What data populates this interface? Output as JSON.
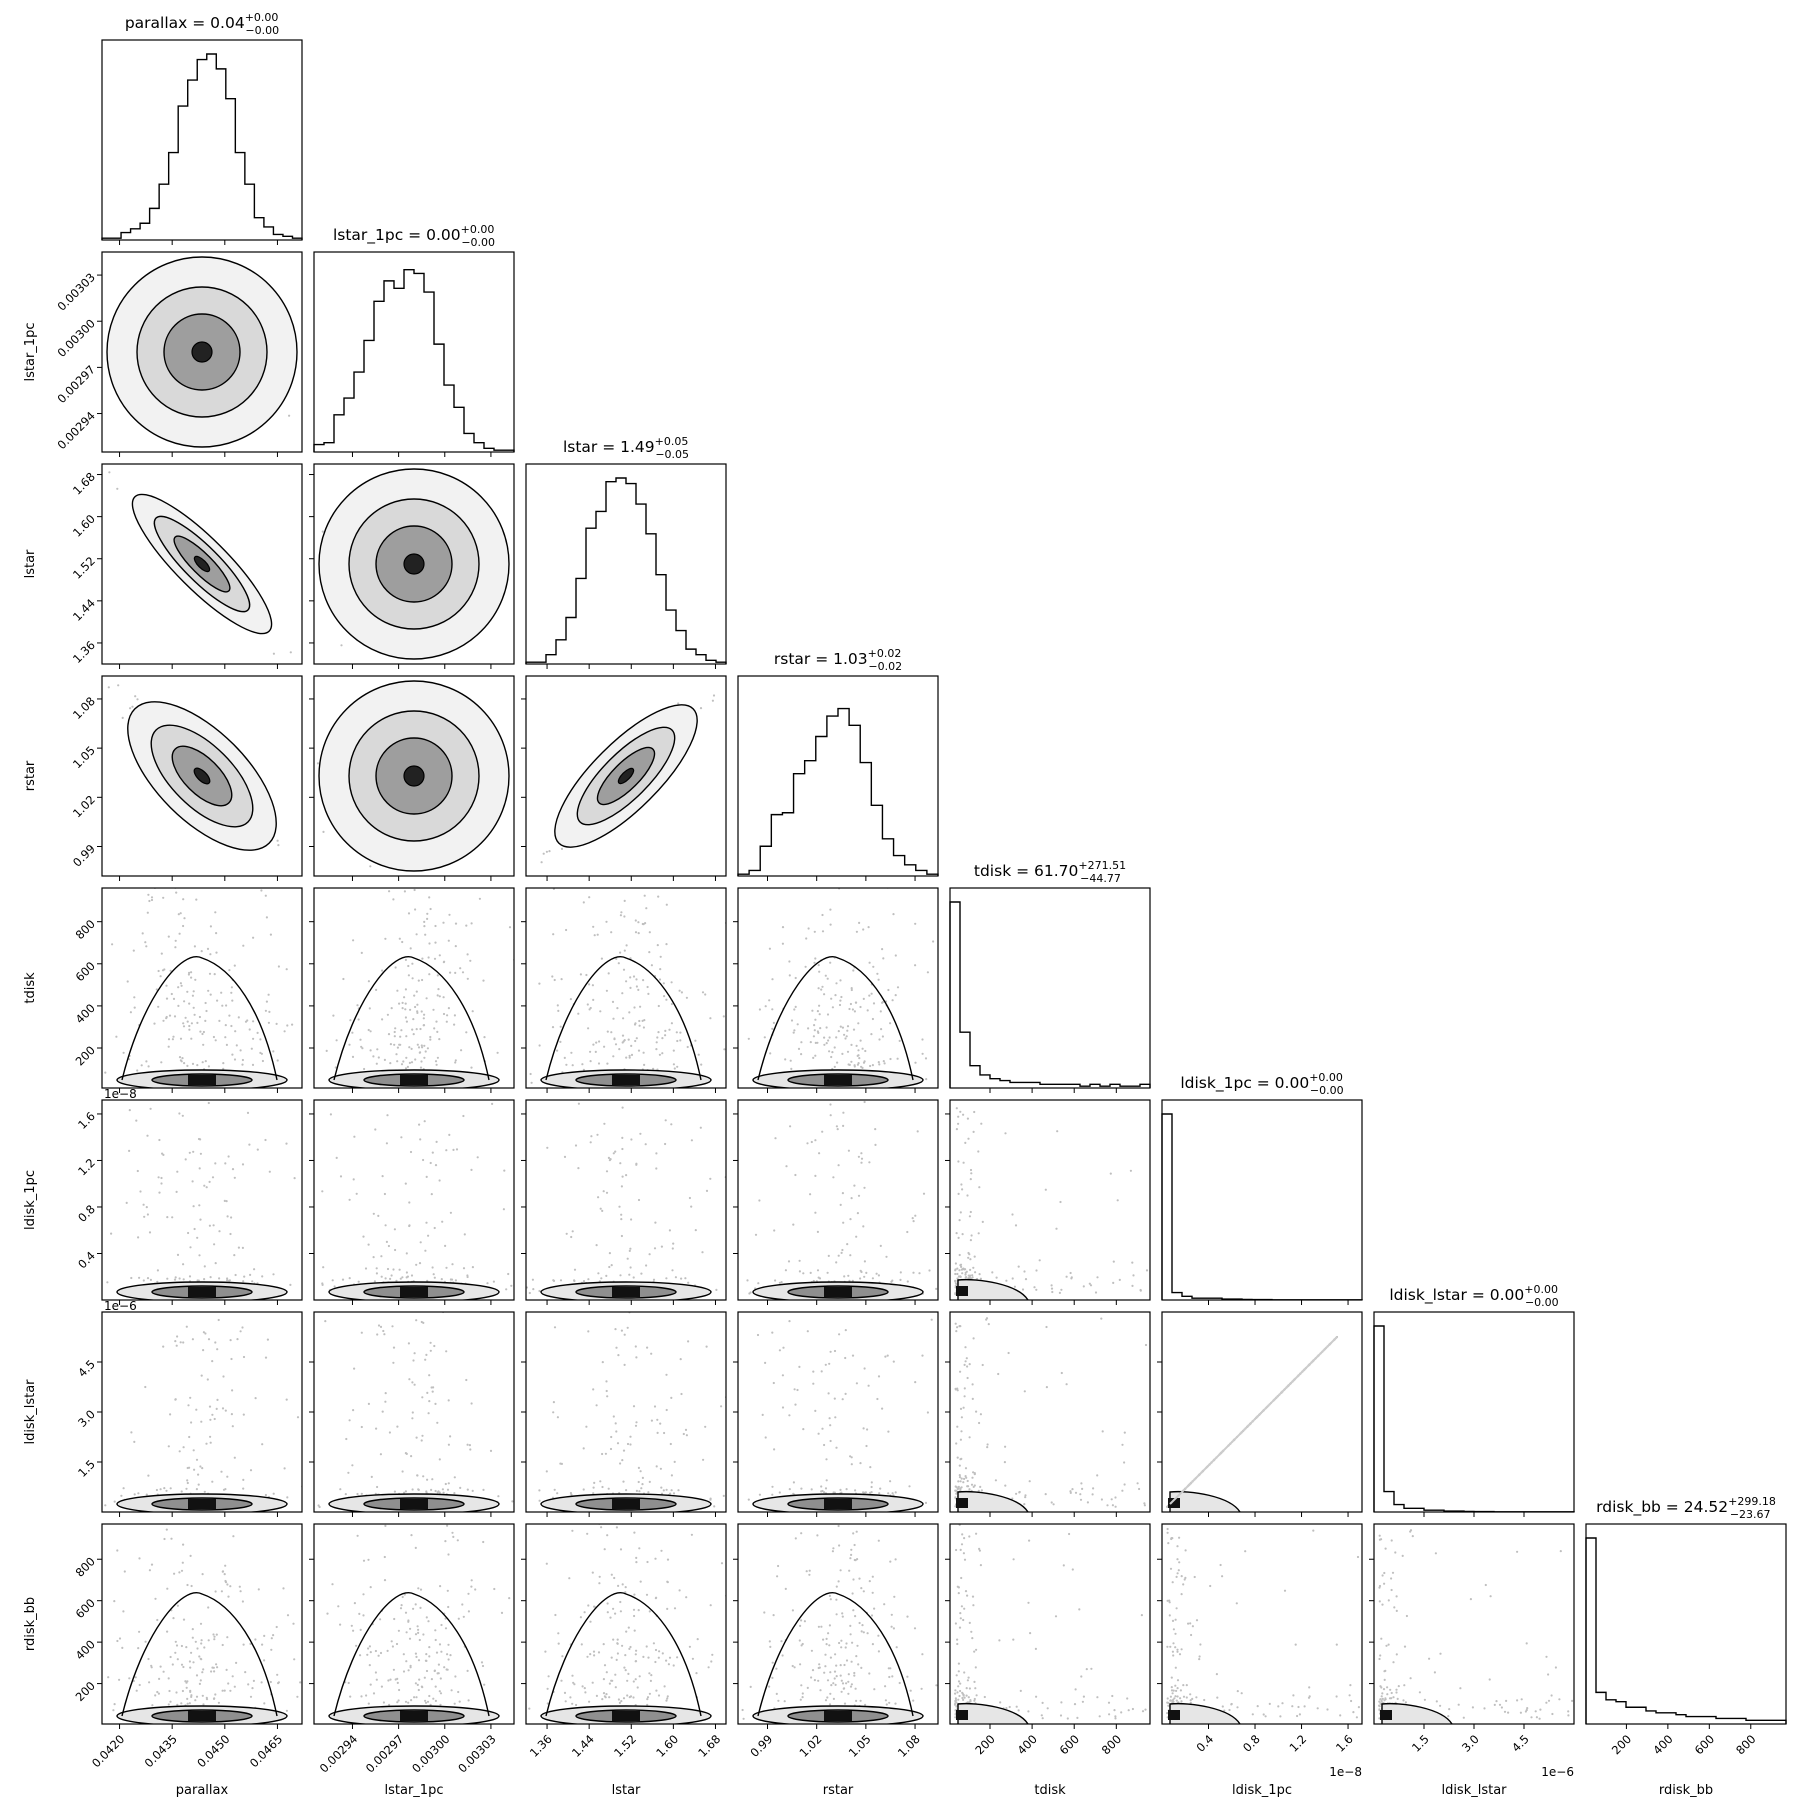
{
  "chart_data": {
    "type": "corner",
    "parameters": [
      {
        "name": "parallax",
        "label": "parallax",
        "title_value": "0.04",
        "title_plus": "0.00",
        "title_minus": "0.00",
        "range": [
          0.0415,
          0.0472
        ],
        "ticks": [
          0.042,
          0.0435,
          0.045,
          0.0465
        ],
        "tick_labels": [
          "0.0420",
          "0.0435",
          "0.0450",
          "0.0465"
        ],
        "offset": ""
      },
      {
        "name": "lstar_1pc",
        "label": "lstar_1pc",
        "title_value": "0.00",
        "title_plus": "0.00",
        "title_minus": "0.00",
        "range": [
          0.002915,
          0.003045
        ],
        "ticks": [
          0.00294,
          0.00297,
          0.003,
          0.00303
        ],
        "tick_labels": [
          "0.00294",
          "0.00297",
          "0.00300",
          "0.00303"
        ],
        "offset": ""
      },
      {
        "name": "lstar",
        "label": "lstar",
        "title_value": "1.49",
        "title_plus": "0.05",
        "title_minus": "0.05",
        "range": [
          1.32,
          1.7
        ],
        "ticks": [
          1.36,
          1.44,
          1.52,
          1.6,
          1.68
        ],
        "tick_labels": [
          "1.36",
          "1.44",
          "1.52",
          "1.60",
          "1.68"
        ],
        "offset": ""
      },
      {
        "name": "rstar",
        "label": "rstar",
        "title_value": "1.03",
        "title_plus": "0.02",
        "title_minus": "0.02",
        "range": [
          0.972,
          1.094
        ],
        "ticks": [
          0.99,
          1.02,
          1.05,
          1.08
        ],
        "tick_labels": [
          "0.99",
          "1.02",
          "1.05",
          "1.08"
        ],
        "offset": ""
      },
      {
        "name": "tdisk",
        "label": "tdisk",
        "title_value": "61.70",
        "title_plus": "271.51",
        "title_minus": "44.77",
        "range": [
          10,
          960
        ],
        "ticks": [
          200,
          400,
          600,
          800
        ],
        "tick_labels": [
          "200",
          "400",
          "600",
          "800"
        ],
        "offset": ""
      },
      {
        "name": "ldisk_1pc",
        "label": "ldisk_1pc",
        "title_value": "0.00",
        "title_plus": "0.00",
        "title_minus": "0.00",
        "range": [
          0.0,
          1.72
        ],
        "ticks": [
          0.4,
          0.8,
          1.2,
          1.6
        ],
        "tick_labels": [
          "0.4",
          "0.8",
          "1.2",
          "1.6"
        ],
        "offset": "1e−8"
      },
      {
        "name": "ldisk_lstar",
        "label": "ldisk_lstar",
        "title_value": "0.00",
        "title_plus": "0.00",
        "title_minus": "0.00",
        "range": [
          0.0,
          6.0
        ],
        "ticks": [
          1.5,
          3.0,
          4.5
        ],
        "tick_labels": [
          "1.5",
          "3.0",
          "4.5"
        ],
        "offset": "1e−6"
      },
      {
        "name": "rdisk_bb",
        "label": "rdisk_bb",
        "title_value": "24.52",
        "title_plus": "299.18",
        "title_minus": "23.67",
        "range": [
          5,
          970
        ],
        "ticks": [
          200,
          400,
          600,
          800
        ],
        "tick_labels": [
          "200",
          "400",
          "600",
          "800"
        ],
        "offset": ""
      }
    ],
    "histograms": [
      [
        0.01,
        0.01,
        0.04,
        0.06,
        0.09,
        0.17,
        0.3,
        0.47,
        0.72,
        0.86,
        0.97,
        1.0,
        0.92,
        0.76,
        0.47,
        0.3,
        0.12,
        0.07,
        0.03,
        0.02,
        0.01
      ],
      [
        0.04,
        0.05,
        0.2,
        0.29,
        0.43,
        0.6,
        0.81,
        0.92,
        0.88,
        0.98,
        0.96,
        0.86,
        0.58,
        0.36,
        0.24,
        0.1,
        0.05,
        0.02,
        0.01,
        0.01
      ],
      [
        0.01,
        0.01,
        0.05,
        0.13,
        0.25,
        0.46,
        0.73,
        0.82,
        0.98,
        1.0,
        0.97,
        0.86,
        0.7,
        0.48,
        0.29,
        0.18,
        0.08,
        0.05,
        0.02,
        0.01
      ],
      [
        0.01,
        0.03,
        0.16,
        0.33,
        0.34,
        0.55,
        0.62,
        0.75,
        0.86,
        0.9,
        0.81,
        0.61,
        0.38,
        0.2,
        0.11,
        0.06,
        0.03,
        0.01
      ],
      [
        1.0,
        0.3,
        0.12,
        0.07,
        0.05,
        0.04,
        0.03,
        0.03,
        0.03,
        0.02,
        0.02,
        0.02,
        0.02,
        0.01,
        0.02,
        0.01,
        0.02,
        0.01,
        0.01,
        0.02
      ],
      [
        1.0,
        0.04,
        0.02,
        0.01,
        0.01,
        0.01,
        0.005,
        0.005,
        0.003,
        0.002,
        0.002,
        0.001,
        0.001,
        0.001,
        0.001,
        0.001,
        0.001,
        0.001,
        0.001,
        0.001
      ],
      [
        1.0,
        0.11,
        0.04,
        0.02,
        0.02,
        0.01,
        0.01,
        0.005,
        0.005,
        0.003,
        0.002,
        0.002,
        0.001,
        0.001,
        0.001,
        0.001,
        0.001,
        0.001,
        0.001,
        0.001
      ],
      [
        1.0,
        0.17,
        0.13,
        0.12,
        0.09,
        0.09,
        0.07,
        0.06,
        0.06,
        0.05,
        0.04,
        0.04,
        0.04,
        0.03,
        0.03,
        0.03,
        0.02,
        0.02,
        0.02,
        0.02
      ]
    ],
    "grid": false,
    "legend": "none"
  }
}
